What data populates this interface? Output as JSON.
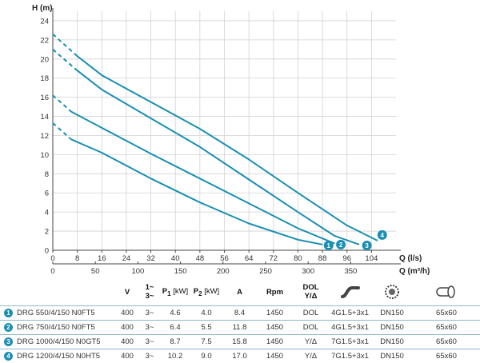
{
  "chart_data": {
    "type": "line",
    "y_axis": {
      "label": "H (m)",
      "ticks": [
        0,
        2,
        4,
        6,
        8,
        10,
        12,
        14,
        16,
        18,
        20,
        22,
        24
      ],
      "range": [
        0,
        25
      ]
    },
    "x_axis_ls": {
      "label": "Q (l/s)",
      "ticks": [
        0,
        8,
        16,
        24,
        32,
        40,
        48,
        56,
        64,
        72,
        80,
        88,
        96,
        104
      ],
      "range": [
        0,
        112
      ]
    },
    "x_axis_m3h": {
      "label": "Q (m³/h)",
      "ticks": [
        0,
        50,
        100,
        150,
        200,
        250,
        300,
        350
      ],
      "range": [
        0,
        403.2
      ]
    },
    "grid": true,
    "color": "#1a8fb3",
    "series": [
      {
        "name": "1",
        "dashed": [
          [
            0,
            13.3
          ],
          [
            6,
            11.6
          ]
        ],
        "solid": [
          [
            6,
            11.6
          ],
          [
            16,
            10.2
          ],
          [
            32,
            7.5
          ],
          [
            48,
            5.0
          ],
          [
            64,
            2.8
          ],
          [
            80,
            1.1
          ],
          [
            88,
            0.6
          ]
        ],
        "badge_at": [
          90,
          0.5
        ]
      },
      {
        "name": "2",
        "dashed": [
          [
            0,
            16.2
          ],
          [
            6,
            14.5
          ]
        ],
        "solid": [
          [
            6,
            14.5
          ],
          [
            16,
            12.8
          ],
          [
            32,
            10.1
          ],
          [
            48,
            7.5
          ],
          [
            64,
            4.9
          ],
          [
            80,
            2.3
          ],
          [
            92,
            0.7
          ]
        ],
        "badge_at": [
          94,
          0.6
        ]
      },
      {
        "name": "3",
        "dashed": [
          [
            0,
            21.0
          ],
          [
            8,
            18.8
          ]
        ],
        "solid": [
          [
            8,
            18.8
          ],
          [
            16,
            16.8
          ],
          [
            32,
            13.8
          ],
          [
            48,
            10.8
          ],
          [
            64,
            7.4
          ],
          [
            80,
            4.0
          ],
          [
            92,
            1.5
          ],
          [
            100,
            0.6
          ]
        ],
        "badge_at": [
          102.5,
          0.5
        ]
      },
      {
        "name": "4",
        "dashed": [
          [
            0,
            22.6
          ],
          [
            8,
            20.3
          ]
        ],
        "solid": [
          [
            8,
            20.3
          ],
          [
            16,
            18.3
          ],
          [
            32,
            15.5
          ],
          [
            48,
            12.7
          ],
          [
            64,
            9.5
          ],
          [
            80,
            6.0
          ],
          [
            96,
            2.6
          ],
          [
            106,
            1.0
          ]
        ],
        "badge_at": [
          107.5,
          1.6
        ]
      }
    ]
  },
  "table": {
    "headers": {
      "v": "V",
      "phase_top": "1~",
      "phase_bottom": "3~",
      "p1_sym": "P",
      "p1_sub": "1",
      "p1_unit": "[kW]",
      "p2_sym": "P",
      "p2_sub": "2",
      "p2_unit": "[kW]",
      "a": "A",
      "rpm": "Rpm",
      "dol_top": "DOL",
      "dol_bottom": "Y/Δ",
      "icons": [
        "cable-icon",
        "flange-icon",
        "outlet-icon"
      ]
    },
    "rows": [
      {
        "num": "1",
        "model": "DRG 550/4/150 N0FT5",
        "v": "400",
        "phase": "3~",
        "p1": "4.6",
        "p2": "4.0",
        "a": "8.4",
        "rpm": "1450",
        "start": "DOL",
        "cable": "4G1.5+3x1",
        "dn": "DN150",
        "size": "65x60"
      },
      {
        "num": "2",
        "model": "DRG 750/4/150 N0FT5",
        "v": "400",
        "phase": "3~",
        "p1": "6.4",
        "p2": "5.5",
        "a": "11.8",
        "rpm": "1450",
        "start": "DOL",
        "cable": "4G1.5+3x1",
        "dn": "DN150",
        "size": "65x60"
      },
      {
        "num": "3",
        "model": "DRG 1000/4/150 N0GT5",
        "v": "400",
        "phase": "3~",
        "p1": "8.7",
        "p2": "7.5",
        "a": "15.8",
        "rpm": "1450",
        "start": "Y/Δ",
        "cable": "7G1.5+3x1",
        "dn": "DN150",
        "size": "65x60"
      },
      {
        "num": "4",
        "model": "DRG 1200/4/150 N0HT5",
        "v": "400",
        "phase": "3~",
        "p1": "10.2",
        "p2": "9.0",
        "a": "17.0",
        "rpm": "1450",
        "start": "Y/Δ",
        "cable": "7G1.5+3x1",
        "dn": "DN150",
        "size": "65x60"
      }
    ]
  }
}
